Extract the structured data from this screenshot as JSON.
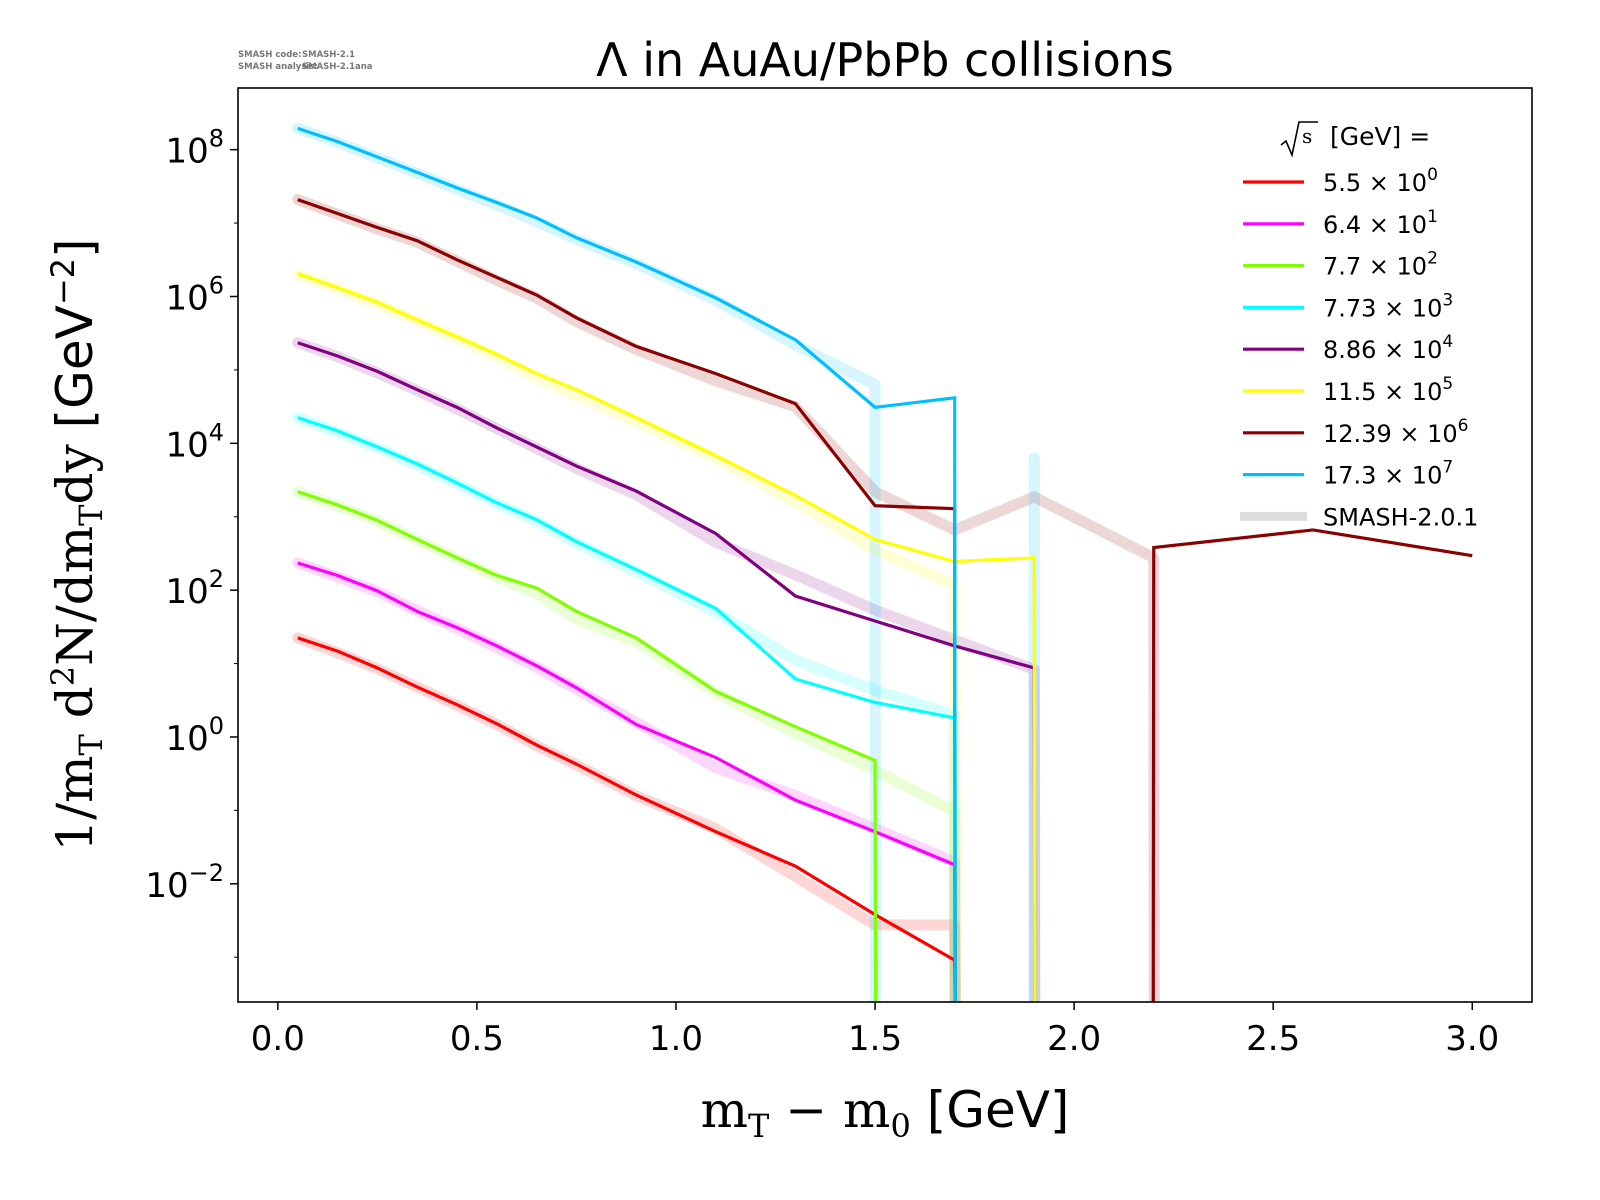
{
  "watermark": {
    "line1_label": "SMASH code:",
    "line1_value": "SMASH-2.1",
    "line2_label": "SMASH analysis:",
    "line2_value": "SMASH-2.1ana"
  },
  "chart_data": {
    "type": "line",
    "title": "Λ in AuAu/PbPb collisions",
    "xlabel_parts": [
      "m",
      "T",
      " − m",
      "0",
      " [GeV]"
    ],
    "ylabel_parts": [
      "1/m",
      "T",
      " d",
      "2",
      "N/dm",
      "T",
      "dy ",
      "[GeV",
      "−2",
      "]"
    ],
    "xlim": [
      -0.1,
      3.15
    ],
    "ylim_log10": [
      -3.61,
      8.84
    ],
    "yscale": "log",
    "x_ticks": [
      "0.0",
      "0.5",
      "1.0",
      "1.5",
      "2.0",
      "2.5",
      "3.0"
    ],
    "x_tick_values": [
      0,
      0.5,
      1.0,
      1.5,
      2.0,
      2.5,
      3.0
    ],
    "y_ticks": [
      {
        "base": "10",
        "exp": "8",
        "v": 8
      },
      {
        "base": "10",
        "exp": "6",
        "v": 6
      },
      {
        "base": "10",
        "exp": "4",
        "v": 4
      },
      {
        "base": "10",
        "exp": "2",
        "v": 2
      },
      {
        "base": "10",
        "exp": "0",
        "v": 0
      },
      {
        "base": "10",
        "exp": "−2",
        "v": -2
      }
    ],
    "legend": {
      "placement": "top-right",
      "title_sqrt": "s",
      "title_rest": " [GeV] =",
      "reference_label": "SMASH-2.0.1"
    },
    "x": [
      0.05,
      0.15,
      0.25,
      0.35,
      0.45,
      0.55,
      0.65,
      0.75,
      0.9,
      1.1,
      1.3,
      1.5,
      1.7,
      1.9,
      2.2,
      2.6,
      3.0
    ],
    "series_note": "y given as log10 of value; null = zero",
    "series": [
      {
        "name": "5.5",
        "exp": "0",
        "color": "#ff0000",
        "y_log10": [
          1.35,
          1.17,
          0.94,
          0.68,
          0.44,
          0.18,
          -0.11,
          -0.37,
          -0.79,
          -1.29,
          -1.76,
          -2.42,
          -3.04,
          null,
          null,
          null,
          null
        ],
        "ref_log10": [
          1.35,
          1.15,
          0.93,
          0.68,
          0.43,
          0.17,
          -0.12,
          -0.38,
          -0.8,
          -1.25,
          -1.9,
          -2.56,
          -2.56,
          null,
          null,
          null,
          null
        ]
      },
      {
        "name": "6.4",
        "exp": "1",
        "color": "#ff00ff",
        "y_log10": [
          2.37,
          2.2,
          1.99,
          1.71,
          1.49,
          1.24,
          0.97,
          0.67,
          0.17,
          -0.28,
          -0.86,
          -1.29,
          -1.74,
          null,
          null,
          null,
          null
        ],
        "ref_log10": [
          2.37,
          2.18,
          1.98,
          1.72,
          1.48,
          1.22,
          0.95,
          0.65,
          0.2,
          -0.42,
          -0.8,
          -1.25,
          -1.7,
          null,
          null,
          null,
          null
        ]
      },
      {
        "name": "7.7",
        "exp": "2",
        "color": "#80ff00",
        "y_log10": [
          3.34,
          3.16,
          2.95,
          2.69,
          2.44,
          2.2,
          2.03,
          1.71,
          1.35,
          0.62,
          0.14,
          -0.32,
          null,
          null,
          null,
          null,
          null
        ],
        "ref_log10": [
          3.34,
          3.15,
          2.94,
          2.68,
          2.43,
          2.18,
          1.95,
          1.6,
          1.3,
          0.6,
          0.05,
          -0.45,
          -1.02,
          null,
          null,
          null,
          null
        ]
      },
      {
        "name": "7.73",
        "exp": "3",
        "color": "#00ffff",
        "y_log10": [
          4.35,
          4.17,
          3.95,
          3.72,
          3.46,
          3.19,
          2.96,
          2.66,
          2.28,
          1.75,
          0.79,
          0.47,
          0.26,
          null,
          null,
          null,
          null
        ],
        "ref_log10": [
          4.35,
          4.15,
          3.94,
          3.7,
          3.45,
          3.18,
          2.94,
          2.64,
          2.25,
          1.7,
          1.05,
          0.64,
          0.3,
          null,
          null,
          null,
          null
        ]
      },
      {
        "name": "8.86",
        "exp": "4",
        "color": "#800080",
        "y_log10": [
          5.37,
          5.19,
          4.98,
          4.73,
          4.49,
          4.21,
          3.95,
          3.69,
          3.35,
          2.77,
          1.92,
          1.58,
          1.24,
          0.94,
          null,
          null,
          null
        ],
        "ref_log10": [
          5.37,
          5.18,
          4.96,
          4.72,
          4.47,
          4.2,
          3.93,
          3.66,
          3.3,
          2.65,
          2.21,
          1.73,
          1.32,
          0.92,
          null,
          null,
          null
        ]
      },
      {
        "name": "11.5",
        "exp": "5",
        "color": "#ffff00",
        "y_log10": [
          6.31,
          6.12,
          5.92,
          5.68,
          5.45,
          5.21,
          4.95,
          4.73,
          4.35,
          3.83,
          3.29,
          2.69,
          2.39,
          2.44,
          null,
          null,
          null
        ],
        "ref_log10": [
          6.31,
          6.11,
          5.9,
          5.67,
          5.43,
          5.18,
          4.9,
          4.65,
          4.3,
          3.8,
          3.2,
          2.55,
          2.07,
          null,
          null,
          null,
          null
        ]
      },
      {
        "name": "12.39",
        "exp": "6",
        "color": "#8b0000",
        "y_log10": [
          7.32,
          7.13,
          6.94,
          6.76,
          6.5,
          6.26,
          6.02,
          5.71,
          5.32,
          4.95,
          4.54,
          3.15,
          3.11,
          null,
          2.58,
          2.82,
          2.47
        ],
        "ref_log10": [
          7.32,
          7.12,
          6.92,
          6.74,
          6.48,
          6.22,
          5.98,
          5.66,
          5.28,
          4.85,
          4.5,
          3.34,
          2.82,
          3.27,
          2.44,
          null,
          null
        ]
      },
      {
        "name": "17.3",
        "exp": "7",
        "color": "#00bfff",
        "y_log10": [
          8.29,
          8.11,
          7.9,
          7.69,
          7.48,
          7.28,
          7.07,
          6.8,
          6.47,
          5.98,
          5.41,
          4.49,
          4.62,
          null,
          null,
          null,
          null
        ],
        "ref_log10": [
          8.29,
          8.1,
          7.89,
          7.68,
          7.46,
          7.25,
          7.02,
          6.78,
          6.45,
          5.95,
          5.34,
          4.8,
          null,
          3.8,
          null,
          null,
          null
        ]
      }
    ]
  }
}
